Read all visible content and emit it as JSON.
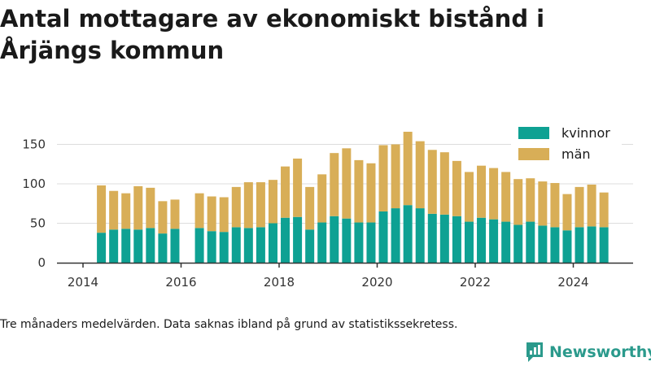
{
  "title": "Antal mottagare av ekonomiskt bistånd i Årjängs kommun",
  "caption": "Tre månaders medelvärden. Data saknas ibland på grund av statistikssekretess.",
  "brand": "Newsworthy",
  "colors": {
    "kvinnor": "#0ea193",
    "man": "#d8ae57",
    "axis": "#333333",
    "grid": "#dddddd",
    "brand": "#2b9a8c"
  },
  "chart_data": {
    "type": "bar",
    "stacked": true,
    "x_unit": "quarter",
    "x": [
      "2014-Q2",
      "2014-Q3",
      "2014-Q4",
      "2015-Q1",
      "2015-Q2",
      "2015-Q3",
      "2015-Q4",
      "2016-Q1",
      "2016-Q2",
      "2016-Q3",
      "2016-Q4",
      "2017-Q1",
      "2017-Q2",
      "2017-Q3",
      "2017-Q4",
      "2018-Q1",
      "2018-Q2",
      "2018-Q3",
      "2018-Q4",
      "2019-Q1",
      "2019-Q2",
      "2019-Q3",
      "2019-Q4",
      "2020-Q1",
      "2020-Q2",
      "2020-Q3",
      "2020-Q4",
      "2021-Q1",
      "2021-Q2",
      "2021-Q3",
      "2021-Q4",
      "2022-Q1",
      "2022-Q2",
      "2022-Q3",
      "2022-Q4",
      "2023-Q1",
      "2023-Q2",
      "2023-Q3",
      "2023-Q4",
      "2024-Q1",
      "2024-Q2",
      "2024-Q3"
    ],
    "series": [
      {
        "name": "kvinnor",
        "values": [
          38,
          42,
          43,
          42,
          44,
          37,
          43,
          null,
          44,
          40,
          39,
          45,
          44,
          45,
          50,
          57,
          58,
          42,
          51,
          59,
          56,
          51,
          51,
          65,
          69,
          73,
          69,
          62,
          61,
          59,
          52,
          57,
          55,
          52,
          48,
          52,
          47,
          45,
          41,
          45,
          46,
          45
        ]
      },
      {
        "name": "män",
        "values": [
          60,
          49,
          45,
          55,
          51,
          41,
          37,
          null,
          44,
          44,
          44,
          51,
          58,
          57,
          55,
          65,
          74,
          54,
          61,
          80,
          89,
          79,
          75,
          84,
          81,
          93,
          85,
          81,
          79,
          70,
          63,
          66,
          65,
          63,
          58,
          55,
          56,
          56,
          46,
          51,
          53,
          44
        ]
      }
    ],
    "yticks": [
      0,
      50,
      100,
      150
    ],
    "xticks": [
      "2014",
      "2016",
      "2018",
      "2020",
      "2022",
      "2024"
    ],
    "ylim": [
      0,
      170
    ],
    "legend": {
      "position": "top-right",
      "entries": [
        "kvinnor",
        "män"
      ]
    }
  }
}
